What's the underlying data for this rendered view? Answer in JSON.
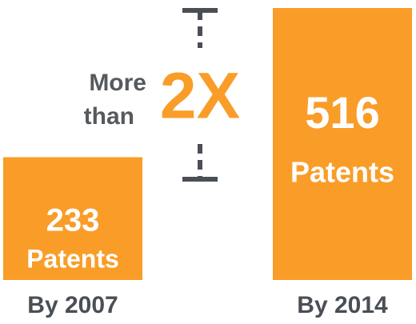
{
  "chart_data": {
    "type": "bar",
    "categories": [
      "By 2007",
      "By 2014"
    ],
    "values": [
      233,
      516
    ],
    "unit": "Patents",
    "color": "#f99d28",
    "annotation": {
      "lines": [
        "More",
        "than"
      ],
      "emphasis": "2X"
    }
  }
}
